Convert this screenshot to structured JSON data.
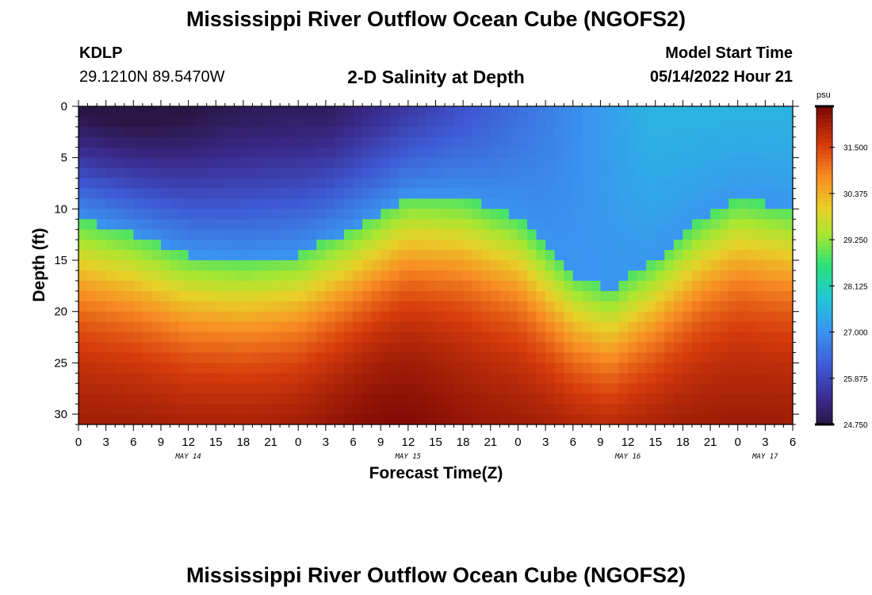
{
  "page_title": "Mississippi River Outflow Ocean Cube (NGOFS2)",
  "station": {
    "id": "KDLP",
    "coords": "29.1210N  89.5470W"
  },
  "model_start": {
    "label": "Model Start Time",
    "value": "05/14/2022 Hour 21"
  },
  "repeat_title": "Mississippi River Outflow Ocean Cube (NGOFS2)",
  "chart_data": {
    "type": "heatmap",
    "title": "2-D Salinity at Depth",
    "xlabel": "Forecast Time(Z)",
    "ylabel": "Depth (ft)",
    "x_tick_labels": [
      "0",
      "3",
      "6",
      "9",
      "12",
      "15",
      "18",
      "21",
      "0",
      "3",
      "6",
      "9",
      "12",
      "15",
      "18",
      "21",
      "0",
      "3",
      "6",
      "9",
      "12",
      "15",
      "18",
      "21",
      "0",
      "3",
      "6"
    ],
    "x_range_hours": [
      0,
      78
    ],
    "day_labels": [
      {
        "label": "MAY 14",
        "hour": 12
      },
      {
        "label": "MAY 15",
        "hour": 36
      },
      {
        "label": "MAY 16",
        "hour": 60
      },
      {
        "label": "MAY 17",
        "hour": 75
      }
    ],
    "y_ticks": [
      0,
      5,
      10,
      15,
      20,
      25,
      30
    ],
    "y_range_ft": [
      0,
      31
    ],
    "y_inverted": true,
    "colorbar": {
      "unit": "psu",
      "ticks": [
        "31.500",
        "30.375",
        "29.250",
        "28.125",
        "27.000",
        "25.875",
        "24.750"
      ],
      "range": [
        24.75,
        32.5
      ]
    },
    "value_range": [
      24.75,
      32.5
    ],
    "colors": {
      "low": "#2a1a4a",
      "mid_blue": "#3c7ae8",
      "cyan": "#20c8d8",
      "green": "#30e070",
      "yellow": "#d8e030",
      "orange": "#f08020",
      "high": "#8a0a04"
    },
    "grid": false,
    "legend": "right-colorbar",
    "halocline_depth_by_hour": [
      {
        "hour": 0,
        "depth_ft": 13.0
      },
      {
        "hour": 6,
        "depth_ft": 14.5
      },
      {
        "hour": 12,
        "depth_ft": 16.5
      },
      {
        "hour": 18,
        "depth_ft": 17.0
      },
      {
        "hour": 24,
        "depth_ft": 16.5
      },
      {
        "hour": 30,
        "depth_ft": 14.0
      },
      {
        "hour": 36,
        "depth_ft": 11.0
      },
      {
        "hour": 42,
        "depth_ft": 11.0
      },
      {
        "hour": 48,
        "depth_ft": 13.0
      },
      {
        "hour": 54,
        "depth_ft": 18.5
      },
      {
        "hour": 58,
        "depth_ft": 20.0
      },
      {
        "hour": 63,
        "depth_ft": 17.0
      },
      {
        "hour": 68,
        "depth_ft": 13.0
      },
      {
        "hour": 72,
        "depth_ft": 11.0
      },
      {
        "hour": 78,
        "depth_ft": 12.0
      }
    ]
  }
}
